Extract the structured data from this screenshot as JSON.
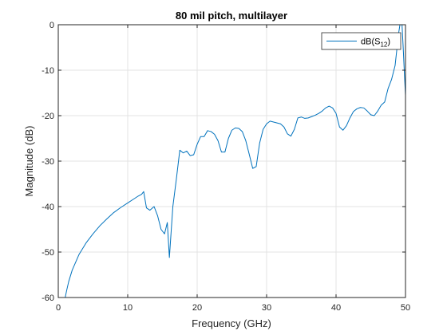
{
  "chart_data": {
    "type": "line",
    "title": "80 mil pitch, multilayer",
    "xlabel": "Frequency (GHz)",
    "ylabel": "Magnitude (dB)",
    "xlim": [
      0,
      50
    ],
    "ylim": [
      -60,
      0
    ],
    "xticks": [
      "0",
      "10",
      "20",
      "30",
      "40",
      "50"
    ],
    "yticks": [
      "0",
      "-10",
      "-20",
      "-30",
      "-40",
      "-50",
      "-60"
    ],
    "grid": true,
    "legend": {
      "placement": "top-right",
      "entry_main": "dB(S",
      "entry_sub": "12",
      "entry_close": ")"
    },
    "line_color": "#0072BD",
    "series": [
      {
        "name": "dB(S12)",
        "x": [
          1.0,
          1.2,
          1.5,
          2.0,
          3.0,
          4.0,
          5.0,
          6.0,
          7.0,
          8.0,
          9.0,
          10.0,
          11.0,
          11.5,
          12.0,
          12.3,
          12.7,
          13.2,
          13.8,
          14.3,
          14.8,
          15.3,
          15.7,
          16.0,
          16.5,
          17.0,
          17.5,
          18.0,
          18.5,
          19.0,
          19.5,
          20.0,
          20.5,
          21.0,
          21.5,
          22.0,
          22.5,
          23.0,
          23.5,
          24.0,
          24.5,
          25.0,
          25.5,
          26.0,
          26.5,
          27.0,
          27.5,
          28.0,
          28.5,
          29.0,
          29.5,
          30.0,
          30.5,
          31.0,
          31.5,
          32.0,
          32.5,
          33.0,
          33.5,
          34.0,
          34.5,
          35.0,
          35.5,
          36.0,
          36.5,
          37.0,
          37.5,
          38.0,
          38.5,
          39.0,
          39.5,
          40.0,
          40.5,
          41.0,
          41.5,
          42.0,
          42.5,
          43.0,
          43.5,
          44.0,
          44.5,
          45.0,
          45.5,
          46.0,
          46.5,
          47.0,
          47.5,
          48.0,
          48.5,
          49.0,
          49.3,
          49.5,
          49.7,
          49.85,
          50.0
        ],
        "y": [
          -60.0,
          -58.5,
          -56.5,
          -54.0,
          -50.5,
          -48.0,
          -46.0,
          -44.2,
          -42.7,
          -41.3,
          -40.2,
          -39.2,
          -38.2,
          -37.7,
          -37.3,
          -36.7,
          -40.3,
          -40.8,
          -40.0,
          -42.0,
          -45.0,
          -46.0,
          -43.5,
          -51.2,
          -40.0,
          -34.0,
          -27.6,
          -28.2,
          -27.8,
          -28.8,
          -28.6,
          -26.3,
          -24.6,
          -24.6,
          -23.3,
          -23.5,
          -24.1,
          -25.5,
          -28.0,
          -28.0,
          -25.0,
          -23.2,
          -22.7,
          -22.8,
          -23.5,
          -25.5,
          -28.5,
          -31.6,
          -31.2,
          -26.0,
          -23.0,
          -21.8,
          -21.2,
          -21.4,
          -21.6,
          -21.8,
          -22.5,
          -24.0,
          -24.5,
          -23.0,
          -20.5,
          -20.3,
          -20.6,
          -20.5,
          -20.2,
          -19.9,
          -19.5,
          -19.0,
          -18.3,
          -17.9,
          -18.3,
          -19.5,
          -22.5,
          -23.2,
          -22.2,
          -20.5,
          -19.1,
          -18.5,
          -18.2,
          -18.3,
          -19.0,
          -19.8,
          -20.0,
          -19.0,
          -17.7,
          -17.0,
          -14.0,
          -12.0,
          -9.0,
          -2.0,
          1.0,
          0.0,
          -6.0,
          -11.0,
          -15.5
        ]
      }
    ]
  }
}
